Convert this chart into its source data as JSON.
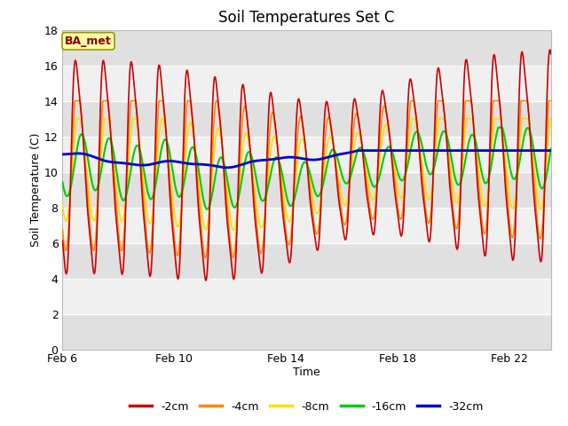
{
  "title": "Soil Temperatures Set C",
  "xlabel": "Time",
  "ylabel": "Soil Temperature (C)",
  "annotation": "BA_met",
  "ylim": [
    0,
    18
  ],
  "xlim_days": [
    0,
    17.5
  ],
  "x_ticks_labels": [
    "Feb 6",
    "Feb 10",
    "Feb 14",
    "Feb 18",
    "Feb 22"
  ],
  "x_ticks_pos": [
    0,
    4,
    8,
    12,
    16
  ],
  "y_ticks": [
    0,
    2,
    4,
    6,
    8,
    10,
    12,
    14,
    16,
    18
  ],
  "legend_labels": [
    "-2cm",
    "-4cm",
    "-8cm",
    "-16cm",
    "-32cm"
  ],
  "legend_colors": [
    "#cc0000",
    "#ff8800",
    "#ffdd00",
    "#00cc00",
    "#0000cc"
  ],
  "background_color": "#ffffff",
  "plot_bg_light": "#f0f0f0",
  "plot_bg_dark": "#e0e0e0",
  "title_fontsize": 12,
  "label_fontsize": 9,
  "tick_fontsize": 9
}
